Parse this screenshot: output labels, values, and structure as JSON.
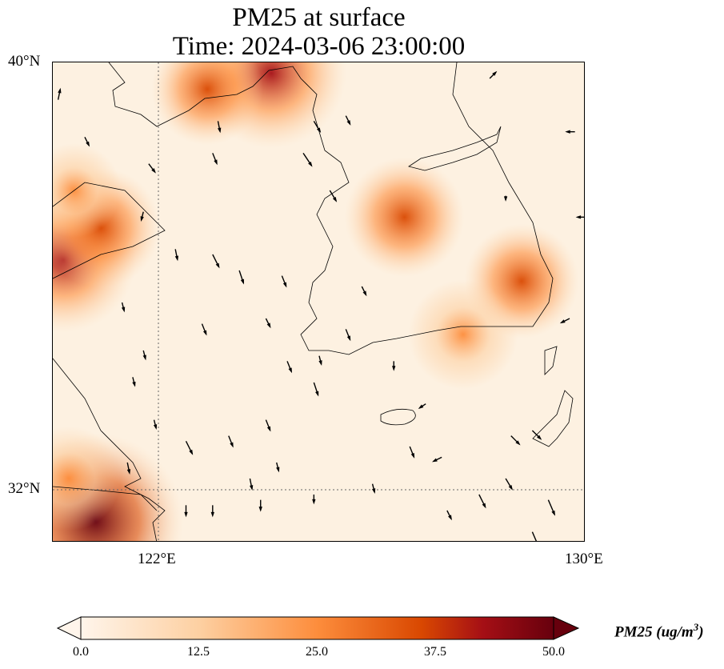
{
  "title": {
    "line1": "PM25 at surface",
    "line2": "Time: 2024-03-06 23:00:00"
  },
  "map": {
    "extent": {
      "lon": [
        120,
        130
      ],
      "lat": [
        31,
        40
      ]
    },
    "lat_labels": [
      {
        "lat": 40,
        "text": "40°N"
      },
      {
        "lat": 32,
        "text": "32°N"
      }
    ],
    "lon_labels": [
      {
        "lon": 122,
        "text": "122°E"
      },
      {
        "lon": 130,
        "text": "130°E"
      }
    ],
    "gridlines": {
      "lon": [
        122
      ],
      "lat": [
        32
      ]
    },
    "pm25_hotspots": [
      {
        "lon": 124.1,
        "lat": 39.8,
        "value": 40
      },
      {
        "lon": 122.9,
        "lat": 39.5,
        "value": 25
      },
      {
        "lon": 120.2,
        "lat": 36.3,
        "value": 38
      },
      {
        "lon": 120.9,
        "lat": 36.9,
        "value": 28
      },
      {
        "lon": 126.6,
        "lat": 37.1,
        "value": 28
      },
      {
        "lon": 128.8,
        "lat": 35.9,
        "value": 26
      },
      {
        "lon": 127.7,
        "lat": 34.9,
        "value": 24
      },
      {
        "lon": 120.8,
        "lat": 31.4,
        "value": 50
      },
      {
        "lon": 120.3,
        "lat": 32.2,
        "value": 22
      },
      {
        "lon": 120.4,
        "lat": 37.6,
        "value": 18
      }
    ],
    "wind_vectors": [
      {
        "lon": 120.1,
        "lat": 39.3,
        "u": 0.1,
        "v": 0.5
      },
      {
        "lon": 120.6,
        "lat": 38.6,
        "u": 0.2,
        "v": -0.4
      },
      {
        "lon": 121.8,
        "lat": 38.1,
        "u": 0.3,
        "v": -0.4
      },
      {
        "lon": 123.0,
        "lat": 38.3,
        "u": 0.2,
        "v": -0.5
      },
      {
        "lon": 123.1,
        "lat": 38.9,
        "u": 0.1,
        "v": -0.5
      },
      {
        "lon": 124.7,
        "lat": 38.3,
        "u": 0.4,
        "v": -0.6
      },
      {
        "lon": 124.9,
        "lat": 38.9,
        "u": 0.3,
        "v": -0.5
      },
      {
        "lon": 125.2,
        "lat": 37.6,
        "u": 0.3,
        "v": -0.5
      },
      {
        "lon": 122.3,
        "lat": 36.5,
        "u": 0.1,
        "v": -0.5
      },
      {
        "lon": 123.0,
        "lat": 36.4,
        "u": 0.3,
        "v": -0.6
      },
      {
        "lon": 123.5,
        "lat": 36.1,
        "u": 0.2,
        "v": -0.6
      },
      {
        "lon": 124.3,
        "lat": 36.0,
        "u": 0.2,
        "v": -0.5
      },
      {
        "lon": 125.8,
        "lat": 35.8,
        "u": 0.2,
        "v": -0.4
      },
      {
        "lon": 121.3,
        "lat": 35.5,
        "u": 0.1,
        "v": -0.4
      },
      {
        "lon": 122.8,
        "lat": 35.1,
        "u": 0.2,
        "v": -0.5
      },
      {
        "lon": 124.0,
        "lat": 35.2,
        "u": 0.2,
        "v": -0.4
      },
      {
        "lon": 125.5,
        "lat": 35.0,
        "u": 0.2,
        "v": -0.5
      },
      {
        "lon": 121.7,
        "lat": 34.6,
        "u": 0.1,
        "v": -0.4
      },
      {
        "lon": 124.4,
        "lat": 34.4,
        "u": 0.2,
        "v": -0.5
      },
      {
        "lon": 124.9,
        "lat": 34.0,
        "u": 0.2,
        "v": -0.6
      },
      {
        "lon": 121.9,
        "lat": 33.3,
        "u": 0.1,
        "v": -0.4
      },
      {
        "lon": 122.5,
        "lat": 32.9,
        "u": 0.3,
        "v": -0.6
      },
      {
        "lon": 123.3,
        "lat": 33.0,
        "u": 0.2,
        "v": -0.5
      },
      {
        "lon": 124.0,
        "lat": 33.3,
        "u": 0.2,
        "v": -0.5
      },
      {
        "lon": 124.2,
        "lat": 32.5,
        "u": 0.1,
        "v": -0.4
      },
      {
        "lon": 123.7,
        "lat": 32.2,
        "u": 0.1,
        "v": -0.5
      },
      {
        "lon": 121.4,
        "lat": 32.5,
        "u": 0.1,
        "v": -0.5
      },
      {
        "lon": 122.5,
        "lat": 31.7,
        "u": 0.0,
        "v": -0.5
      },
      {
        "lon": 123.0,
        "lat": 31.7,
        "u": 0.0,
        "v": -0.5
      },
      {
        "lon": 123.9,
        "lat": 31.8,
        "u": 0.0,
        "v": -0.5
      },
      {
        "lon": 124.9,
        "lat": 31.9,
        "u": 0.0,
        "v": -0.4
      },
      {
        "lon": 126.7,
        "lat": 32.8,
        "u": 0.2,
        "v": -0.5
      },
      {
        "lon": 126.0,
        "lat": 32.1,
        "u": 0.1,
        "v": -0.4
      },
      {
        "lon": 127.4,
        "lat": 31.6,
        "u": 0.2,
        "v": -0.4
      },
      {
        "lon": 128.0,
        "lat": 31.9,
        "u": 0.3,
        "v": -0.6
      },
      {
        "lon": 128.5,
        "lat": 32.2,
        "u": 0.3,
        "v": -0.5
      },
      {
        "lon": 129.3,
        "lat": 31.8,
        "u": 0.3,
        "v": -0.7
      },
      {
        "lon": 129.0,
        "lat": 31.2,
        "u": 0.3,
        "v": -0.7
      },
      {
        "lon": 128.6,
        "lat": 33.0,
        "u": 0.4,
        "v": -0.4
      },
      {
        "lon": 129.0,
        "lat": 33.1,
        "u": 0.4,
        "v": -0.4
      },
      {
        "lon": 127.0,
        "lat": 33.6,
        "u": -0.3,
        "v": -0.2
      },
      {
        "lon": 127.3,
        "lat": 32.6,
        "u": -0.4,
        "v": -0.2
      },
      {
        "lon": 129.7,
        "lat": 35.2,
        "u": -0.4,
        "v": -0.2
      },
      {
        "lon": 130.0,
        "lat": 37.1,
        "u": -0.4,
        "v": 0.0
      },
      {
        "lon": 129.8,
        "lat": 38.7,
        "u": -0.4,
        "v": 0.0
      },
      {
        "lon": 128.5,
        "lat": 37.5,
        "u": 0.0,
        "v": -0.2
      },
      {
        "lon": 126.4,
        "lat": 34.4,
        "u": 0.0,
        "v": -0.4
      },
      {
        "lon": 125.0,
        "lat": 34.5,
        "u": 0.1,
        "v": -0.4
      },
      {
        "lon": 121.7,
        "lat": 37.2,
        "u": -0.1,
        "v": -0.4
      },
      {
        "lon": 121.5,
        "lat": 34.1,
        "u": 0.1,
        "v": -0.4
      },
      {
        "lon": 128.2,
        "lat": 39.7,
        "u": 0.3,
        "v": 0.3
      },
      {
        "lon": 125.5,
        "lat": 39.0,
        "u": 0.2,
        "v": -0.4
      }
    ]
  },
  "colorbar": {
    "min": 0,
    "max": 50,
    "ticks": [
      "0.0",
      "12.5",
      "25.0",
      "37.5",
      "50.0"
    ],
    "label": "PM25 (ug/m",
    "label_sup": "3",
    "label_end": ")",
    "colors": [
      "#fff5eb",
      "#fdd0a2",
      "#fd8d3c",
      "#d94801",
      "#a50f15",
      "#67000d"
    ]
  }
}
